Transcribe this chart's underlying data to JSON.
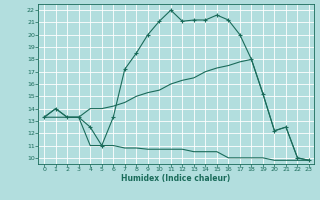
{
  "xlabel": "Humidex (Indice chaleur)",
  "bg_color": "#b2dede",
  "grid_color": "#ffffff",
  "line_color": "#1a6b5a",
  "xlim_min": -0.5,
  "xlim_max": 23.4,
  "ylim_min": 9.5,
  "ylim_max": 22.5,
  "xticks": [
    0,
    1,
    2,
    3,
    4,
    5,
    6,
    7,
    8,
    9,
    10,
    11,
    12,
    13,
    14,
    15,
    16,
    17,
    18,
    19,
    20,
    21,
    22,
    23
  ],
  "yticks": [
    10,
    11,
    12,
    13,
    14,
    15,
    16,
    17,
    18,
    19,
    20,
    21,
    22
  ],
  "line1_x": [
    0,
    1,
    2,
    3,
    4,
    5,
    6,
    7,
    8,
    9,
    10,
    11,
    12,
    13,
    14,
    15,
    16,
    17,
    18,
    19,
    20,
    21,
    22,
    23
  ],
  "line1_y": [
    13.3,
    14.0,
    13.3,
    13.3,
    12.5,
    11.0,
    13.3,
    17.2,
    18.5,
    20.0,
    21.1,
    22.0,
    21.1,
    21.2,
    21.2,
    21.6,
    21.2,
    20.0,
    18.0,
    15.2,
    12.2,
    12.5,
    10.0,
    9.8
  ],
  "line2_x": [
    0,
    1,
    2,
    3,
    4,
    5,
    6,
    7,
    8,
    9,
    10,
    11,
    12,
    13,
    14,
    15,
    16,
    17,
    18,
    19,
    20,
    21,
    22,
    23
  ],
  "line2_y": [
    13.3,
    14.0,
    13.3,
    13.3,
    14.0,
    14.0,
    14.2,
    14.5,
    15.0,
    15.3,
    15.5,
    16.0,
    16.3,
    16.5,
    17.0,
    17.3,
    17.5,
    17.8,
    18.0,
    15.2,
    12.2,
    12.5,
    10.0,
    9.8
  ],
  "line3_x": [
    0,
    1,
    2,
    3,
    4,
    5,
    6,
    7,
    8,
    9,
    10,
    11,
    12,
    13,
    14,
    15,
    16,
    17,
    18,
    19,
    20,
    21,
    22,
    23
  ],
  "line3_y": [
    13.3,
    13.3,
    13.3,
    13.3,
    11.0,
    11.0,
    11.0,
    10.8,
    10.8,
    10.7,
    10.7,
    10.7,
    10.7,
    10.5,
    10.5,
    10.5,
    10.0,
    10.0,
    10.0,
    10.0,
    9.8,
    9.8,
    9.8,
    9.8
  ]
}
